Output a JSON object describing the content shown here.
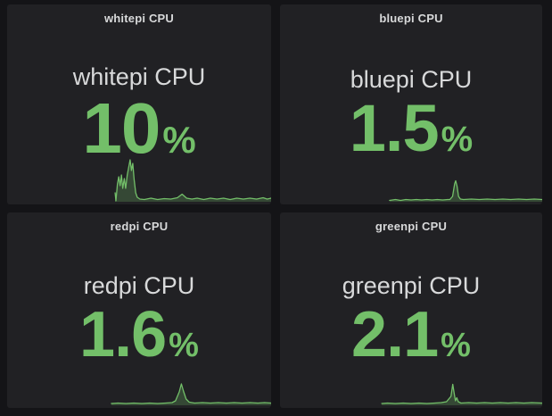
{
  "theme": {
    "page_background": "#141417",
    "panel_background": "#212124",
    "text_color": "#d8d9da",
    "value_color": "#73bf69",
    "sparkline_line_color": "#73bf69",
    "sparkline_fill_color": "rgba(115,191,105,0.25)"
  },
  "panels": [
    {
      "title": "whitepi CPU",
      "label": "whitepi CPU",
      "value": "10",
      "unit": "%"
    },
    {
      "title": "bluepi CPU",
      "label": "bluepi CPU",
      "value": "1.5",
      "unit": "%"
    },
    {
      "title": "redpi CPU",
      "label": "redpi CPU",
      "value": "1.6",
      "unit": "%"
    },
    {
      "title": "greenpi CPU",
      "label": "greenpi CPU",
      "value": "2.1",
      "unit": "%"
    }
  ],
  "chart_data": [
    {
      "type": "area",
      "name": "whitepi CPU",
      "current_value_percent": 10,
      "points_format": "[x_fraction_of_time_axis, y_fraction_of_sparkline_height]",
      "points": [
        [
          0.409,
          0.2
        ],
        [
          0.412,
          0.02
        ],
        [
          0.418,
          0.4
        ],
        [
          0.423,
          0.56
        ],
        [
          0.428,
          0.36
        ],
        [
          0.433,
          0.6
        ],
        [
          0.438,
          0.3
        ],
        [
          0.444,
          0.52
        ],
        [
          0.449,
          0.3
        ],
        [
          0.455,
          0.6
        ],
        [
          0.46,
          0.76
        ],
        [
          0.466,
          0.94
        ],
        [
          0.471,
          0.7
        ],
        [
          0.476,
          0.86
        ],
        [
          0.481,
          0.5
        ],
        [
          0.487,
          0.2
        ],
        [
          0.493,
          0.1
        ],
        [
          0.503,
          0.06
        ],
        [
          0.52,
          0.05
        ],
        [
          0.545,
          0.08
        ],
        [
          0.57,
          0.05
        ],
        [
          0.595,
          0.07
        ],
        [
          0.62,
          0.06
        ],
        [
          0.645,
          0.09
        ],
        [
          0.663,
          0.17
        ],
        [
          0.68,
          0.08
        ],
        [
          0.7,
          0.06
        ],
        [
          0.72,
          0.08
        ],
        [
          0.745,
          0.05
        ],
        [
          0.77,
          0.08
        ],
        [
          0.795,
          0.06
        ],
        [
          0.82,
          0.08
        ],
        [
          0.845,
          0.05
        ],
        [
          0.87,
          0.08
        ],
        [
          0.895,
          0.06
        ],
        [
          0.92,
          0.08
        ],
        [
          0.945,
          0.06
        ],
        [
          0.97,
          0.09
        ],
        [
          0.985,
          0.06
        ],
        [
          1.0,
          0.08
        ]
      ]
    },
    {
      "type": "area",
      "name": "bluepi CPU",
      "current_value_percent": 1.5,
      "points_format": "[x_fraction_of_time_axis, y_fraction_of_sparkline_height]",
      "points": [
        [
          0.418,
          0.03
        ],
        [
          0.44,
          0.05
        ],
        [
          0.46,
          0.03
        ],
        [
          0.48,
          0.05
        ],
        [
          0.5,
          0.04
        ],
        [
          0.52,
          0.05
        ],
        [
          0.54,
          0.04
        ],
        [
          0.56,
          0.05
        ],
        [
          0.58,
          0.04
        ],
        [
          0.6,
          0.05
        ],
        [
          0.62,
          0.04
        ],
        [
          0.64,
          0.05
        ],
        [
          0.648,
          0.05
        ],
        [
          0.658,
          0.12
        ],
        [
          0.666,
          0.4
        ],
        [
          0.67,
          0.47
        ],
        [
          0.675,
          0.35
        ],
        [
          0.681,
          0.12
        ],
        [
          0.688,
          0.06
        ],
        [
          0.7,
          0.05
        ],
        [
          0.73,
          0.06
        ],
        [
          0.76,
          0.05
        ],
        [
          0.79,
          0.06
        ],
        [
          0.82,
          0.05
        ],
        [
          0.85,
          0.06
        ],
        [
          0.88,
          0.05
        ],
        [
          0.91,
          0.06
        ],
        [
          0.94,
          0.05
        ],
        [
          0.97,
          0.06
        ],
        [
          1.0,
          0.05
        ]
      ]
    },
    {
      "type": "area",
      "name": "redpi CPU",
      "current_value_percent": 1.6,
      "points_format": "[x_fraction_of_time_axis, y_fraction_of_sparkline_height]",
      "points": [
        [
          0.395,
          0.04
        ],
        [
          0.42,
          0.05
        ],
        [
          0.45,
          0.04
        ],
        [
          0.48,
          0.05
        ],
        [
          0.51,
          0.04
        ],
        [
          0.54,
          0.05
        ],
        [
          0.57,
          0.04
        ],
        [
          0.6,
          0.05
        ],
        [
          0.625,
          0.06
        ],
        [
          0.638,
          0.1
        ],
        [
          0.652,
          0.3
        ],
        [
          0.66,
          0.48
        ],
        [
          0.668,
          0.32
        ],
        [
          0.678,
          0.14
        ],
        [
          0.69,
          0.07
        ],
        [
          0.71,
          0.05
        ],
        [
          0.74,
          0.06
        ],
        [
          0.77,
          0.05
        ],
        [
          0.8,
          0.06
        ],
        [
          0.83,
          0.05
        ],
        [
          0.86,
          0.06
        ],
        [
          0.89,
          0.05
        ],
        [
          0.92,
          0.06
        ],
        [
          0.95,
          0.05
        ],
        [
          0.975,
          0.06
        ],
        [
          1.0,
          0.05
        ]
      ]
    },
    {
      "type": "area",
      "name": "greenpi CPU",
      "current_value_percent": 2.1,
      "points_format": "[x_fraction_of_time_axis, y_fraction_of_sparkline_height]",
      "points": [
        [
          0.388,
          0.04
        ],
        [
          0.41,
          0.05
        ],
        [
          0.44,
          0.04
        ],
        [
          0.47,
          0.05
        ],
        [
          0.5,
          0.04
        ],
        [
          0.53,
          0.05
        ],
        [
          0.56,
          0.04
        ],
        [
          0.59,
          0.05
        ],
        [
          0.615,
          0.06
        ],
        [
          0.635,
          0.08
        ],
        [
          0.652,
          0.2
        ],
        [
          0.659,
          0.47
        ],
        [
          0.664,
          0.28
        ],
        [
          0.669,
          0.1
        ],
        [
          0.674,
          0.17
        ],
        [
          0.68,
          0.08
        ],
        [
          0.69,
          0.05
        ],
        [
          0.72,
          0.06
        ],
        [
          0.75,
          0.05
        ],
        [
          0.78,
          0.06
        ],
        [
          0.81,
          0.05
        ],
        [
          0.84,
          0.06
        ],
        [
          0.87,
          0.05
        ],
        [
          0.9,
          0.06
        ],
        [
          0.93,
          0.05
        ],
        [
          0.96,
          0.06
        ],
        [
          1.0,
          0.05
        ]
      ]
    }
  ]
}
